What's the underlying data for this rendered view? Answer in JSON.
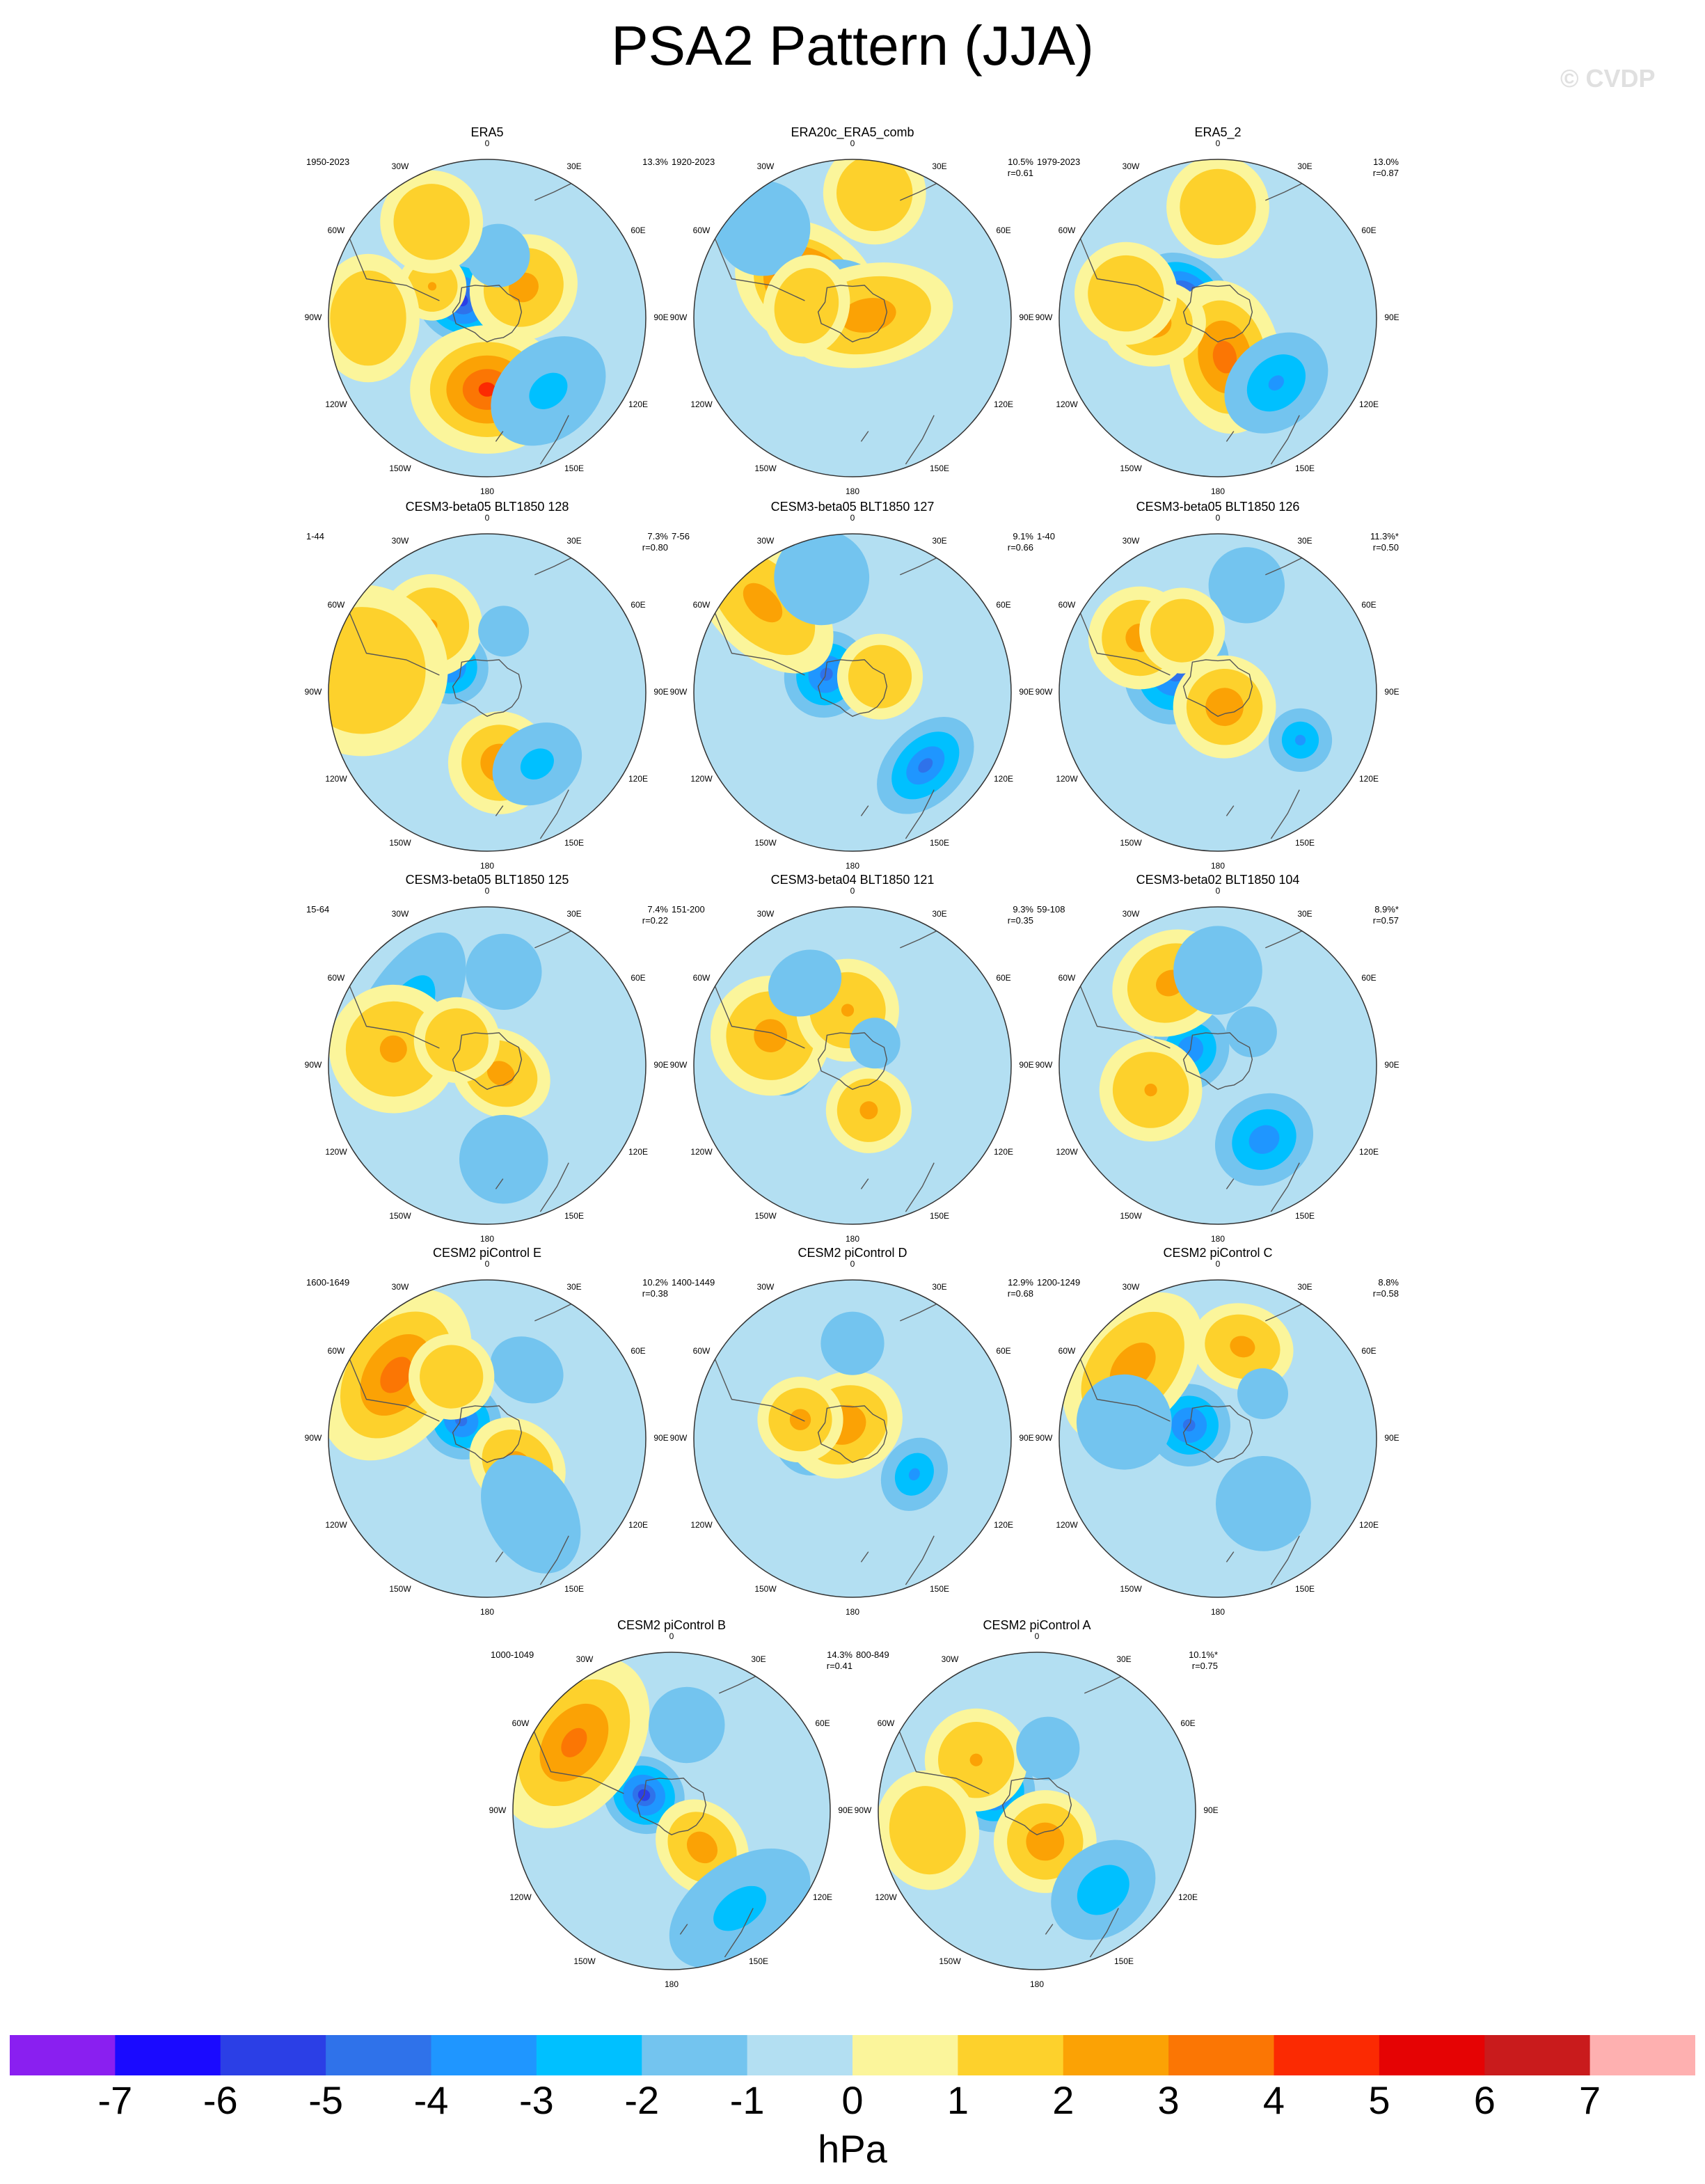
{
  "title": "PSA2 Pattern (JJA)",
  "copyright": "© CVDP",
  "units": "hPa",
  "colorbar": {
    "labels": [
      "-7",
      "-6",
      "-5",
      "-4",
      "-3",
      "-2",
      "-1",
      "0",
      "1",
      "2",
      "3",
      "4",
      "5",
      "6",
      "7"
    ],
    "colors": [
      "#8a1ff0",
      "#1a0aff",
      "#2b3fe6",
      "#2f72ea",
      "#1f96ff",
      "#00c0ff",
      "#73c4ef",
      "#b3dff2",
      "#fbf59b",
      "#fdd12c",
      "#fba205",
      "#fb7604",
      "#fb2a02",
      "#e50304",
      "#c91b1c",
      "#feb0b0"
    ]
  },
  "lon_labels": [
    "0",
    "30E",
    "60E",
    "90E",
    "120E",
    "150E",
    "180",
    "150W",
    "120W",
    "90W",
    "60W",
    "30W"
  ],
  "panels": [
    {
      "name": "ERA5",
      "years": "1950-2023",
      "pct": "13.3%",
      "r": "",
      "blobs": [
        [
          125,
          -20,
          0.13,
          0.15,
          -4.5
        ],
        [
          180,
          45,
          0.18,
          0.15,
          3.5
        ],
        [
          140,
          60,
          0.2,
          0.15,
          -1.5
        ],
        [
          -60,
          40,
          0.08,
          0.08,
          1.2
        ],
        [
          50,
          30,
          0.12,
          0.13,
          1.6
        ],
        [
          10,
          40,
          0.1,
          0.1,
          -0.6
        ],
        [
          -90,
          75,
          0.15,
          0.12,
          0.8
        ],
        [
          -30,
          70,
          0.12,
          0.12,
          0.8
        ]
      ]
    },
    {
      "name": "ERA20c_ERA5_comb",
      "years": "1920-2023",
      "pct": "10.5%",
      "r": "r=0.61",
      "blobs": [
        [
          125,
          -35,
          0.14,
          0.18,
          5.5
        ],
        [
          120,
          -10,
          0.16,
          0.16,
          -2.2
        ],
        [
          80,
          10,
          0.12,
          0.2,
          1.8
        ],
        [
          -45,
          80,
          0.15,
          0.15,
          -0.6
        ],
        [
          10,
          80,
          0.12,
          0.12,
          0.6
        ],
        [
          -75,
          30,
          0.12,
          0.1,
          0.6
        ]
      ]
    },
    {
      "name": "ERA5_2",
      "years": "1979-2023",
      "pct": "13.0%",
      "r": "r=0.87",
      "blobs": [
        [
          125,
          -25,
          0.12,
          0.16,
          -4.6
        ],
        [
          170,
          25,
          0.13,
          0.18,
          2.8
        ],
        [
          85,
          -40,
          0.1,
          0.12,
          1.8
        ],
        [
          138,
          55,
          0.18,
          0.14,
          -2.3
        ],
        [
          -75,
          60,
          0.12,
          0.12,
          0.8
        ],
        [
          0,
          70,
          0.12,
          0.12,
          0.7
        ]
      ]
    },
    {
      "name": "CESM3-beta05 BLT1850 128",
      "years": "1-44",
      "pct": "7.3%",
      "r": "r=0.80",
      "blobs": [
        [
          125,
          -30,
          0.12,
          0.13,
          -3.6
        ],
        [
          170,
          45,
          0.12,
          0.12,
          2.0
        ],
        [
          145,
          55,
          0.15,
          0.12,
          -1.6
        ],
        [
          -40,
          55,
          0.12,
          0.12,
          1.2
        ],
        [
          15,
          40,
          0.08,
          0.08,
          -1.0
        ],
        [
          -80,
          80,
          0.2,
          0.2,
          0.6
        ]
      ]
    },
    {
      "name": "CESM3-beta05 BLT1850 127",
      "years": "7-56",
      "pct": "9.1%",
      "r": "r=0.66",
      "blobs": [
        [
          125,
          -20,
          0.14,
          0.13,
          -3.5
        ],
        [
          135,
          -80,
          0.12,
          0.2,
          1.6
        ],
        [
          135,
          65,
          0.18,
          0.12,
          -3.3
        ],
        [
          60,
          20,
          0.1,
          0.1,
          1.0
        ],
        [
          -15,
          75,
          0.15,
          0.15,
          -0.7
        ]
      ]
    },
    {
      "name": "CESM3-beta05 BLT1850 126",
      "years": "1-40",
      "pct": "11.3%*",
      "r": "r=0.50",
      "blobs": [
        [
          120,
          -30,
          0.18,
          0.16,
          -3.9
        ],
        [
          155,
          10,
          0.12,
          0.12,
          2.0
        ],
        [
          120,
          60,
          0.1,
          0.1,
          -2.4
        ],
        [
          -55,
          60,
          0.12,
          0.12,
          1.6
        ],
        [
          15,
          70,
          0.12,
          0.12,
          -0.7
        ],
        [
          -30,
          45,
          0.1,
          0.1,
          0.8
        ]
      ]
    },
    {
      "name": "CESM3-beta05 BLT1850 125",
      "years": "15-64",
      "pct": "7.4%",
      "r": "r=0.22",
      "blobs": [
        [
          120,
          -60,
          0.3,
          0.14,
          -2.0
        ],
        [
          120,
          10,
          0.1,
          0.12,
          1.6
        ],
        [
          -80,
          60,
          0.15,
          0.15,
          1.4
        ],
        [
          -50,
          25,
          0.1,
          0.1,
          0.7
        ],
        [
          10,
          60,
          0.12,
          0.12,
          -0.6
        ],
        [
          170,
          60,
          0.14,
          0.14,
          -0.6
        ]
      ]
    },
    {
      "name": "CESM3-beta04 BLT1850 121",
      "years": "151-200",
      "pct": "9.3%",
      "r": "r=0.35",
      "blobs": [
        [
          105,
          -40,
          0.15,
          0.1,
          -2.6
        ],
        [
          160,
          30,
          0.1,
          0.1,
          1.4
        ],
        [
          -70,
          55,
          0.14,
          0.14,
          1.6
        ],
        [
          -5,
          35,
          0.12,
          0.12,
          1.2
        ],
        [
          45,
          20,
          0.08,
          0.08,
          -0.7
        ],
        [
          150,
          -60,
          0.12,
          0.1,
          -0.6
        ]
      ]
    },
    {
      "name": "CESM3-beta02 BLT1850 104",
      "years": "59-108",
      "pct": "8.9%*",
      "r": "r=0.57",
      "blobs": [
        [
          120,
          -20,
          0.13,
          0.12,
          -3.0
        ],
        [
          148,
          55,
          0.16,
          0.14,
          -2.9
        ],
        [
          -30,
          60,
          0.14,
          0.12,
          1.5
        ],
        [
          70,
          -45,
          0.12,
          0.12,
          1.2
        ],
        [
          45,
          30,
          0.08,
          0.08,
          -0.6
        ],
        [
          0,
          60,
          0.14,
          0.14,
          -0.6
        ]
      ]
    },
    {
      "name": "CESM2 piControl E",
      "years": "1600-1649",
      "pct": "10.2%",
      "r": "r=0.38",
      "blobs": [
        [
          125,
          -20,
          0.12,
          0.13,
          -3.5
        ],
        [
          125,
          -70,
          0.22,
          0.15,
          2.8
        ],
        [
          130,
          25,
          0.1,
          0.12,
          1.6
        ],
        [
          150,
          55,
          0.14,
          0.2,
          -0.8
        ],
        [
          30,
          50,
          0.12,
          0.1,
          -0.8
        ],
        [
          -30,
          45,
          0.1,
          0.1,
          0.7
        ]
      ]
    },
    {
      "name": "CESM2 piControl D",
      "years": "1400-1449",
      "pct": "12.9%",
      "r": "r=0.68",
      "blobs": [
        [
          105,
          -25,
          0.15,
          0.13,
          -4.2
        ],
        [
          150,
          -10,
          0.14,
          0.12,
          2.0
        ],
        [
          120,
          45,
          0.12,
          0.1,
          -2.4
        ],
        [
          -70,
          35,
          0.1,
          0.1,
          1.5
        ],
        [
          0,
          60,
          0.1,
          0.1,
          -0.7
        ]
      ]
    },
    {
      "name": "CESM2 piControl C",
      "years": "1200-1249",
      "pct": "8.8%",
      "r": "r=0.58",
      "blobs": [
        [
          115,
          -20,
          0.13,
          0.13,
          -3.5
        ],
        [
          130,
          -70,
          0.2,
          0.13,
          1.8
        ],
        [
          15,
          60,
          0.12,
          0.1,
          1.5
        ],
        [
          45,
          40,
          0.08,
          0.08,
          -0.6
        ],
        [
          -80,
          60,
          0.15,
          0.15,
          -0.6
        ],
        [
          145,
          50,
          0.15,
          0.15,
          -0.6
        ]
      ]
    },
    {
      "name": "CESM2 piControl B",
      "years": "1000-1049",
      "pct": "14.3%",
      "r": "r=0.41",
      "blobs": [
        [
          120,
          -20,
          0.12,
          0.13,
          -4.2
        ],
        [
          125,
          -75,
          0.22,
          0.15,
          2.6
        ],
        [
          140,
          30,
          0.1,
          0.12,
          1.8
        ],
        [
          145,
          75,
          0.25,
          0.15,
          -1.6
        ],
        [
          10,
          55,
          0.12,
          0.12,
          -0.8
        ]
      ]
    },
    {
      "name": "CESM2 piControl A",
      "years": "800-849",
      "pct": "10.1%*",
      "r": "r=0.75",
      "blobs": [
        [
          115,
          -30,
          0.13,
          0.13,
          -3.8
        ],
        [
          165,
          20,
          0.12,
          0.12,
          2.0
        ],
        [
          140,
          65,
          0.18,
          0.14,
          -2.0
        ],
        [
          -50,
          50,
          0.12,
          0.12,
          1.2
        ],
        [
          10,
          40,
          0.1,
          0.1,
          -0.8
        ],
        [
          80,
          -70,
          0.14,
          0.12,
          1.0
        ]
      ]
    }
  ]
}
